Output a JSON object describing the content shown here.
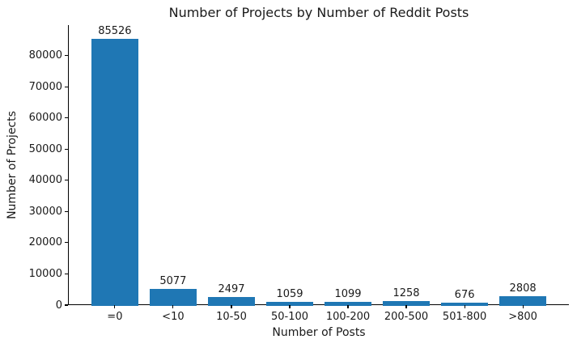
{
  "chart_data": {
    "type": "bar",
    "title": "Number of Projects by Number of Reddit Posts",
    "xlabel": "Number of Posts",
    "ylabel": "Number of Projects",
    "categories": [
      "=0",
      "<10",
      "10-50",
      "50-100",
      "100-200",
      "200-500",
      "501-800",
      ">800"
    ],
    "values": [
      85526,
      5077,
      2497,
      1059,
      1099,
      1258,
      676,
      2808
    ],
    "y_ticks": [
      0,
      10000,
      20000,
      30000,
      40000,
      50000,
      60000,
      70000,
      80000
    ],
    "ylim": [
      0,
      89800
    ],
    "bar_color": "#1f77b4",
    "text_color": "#1a1a1a",
    "spine_color": "#000000",
    "grid": false,
    "legend": "none",
    "spines": "left-bottom-only",
    "value_labels_shown": true
  }
}
